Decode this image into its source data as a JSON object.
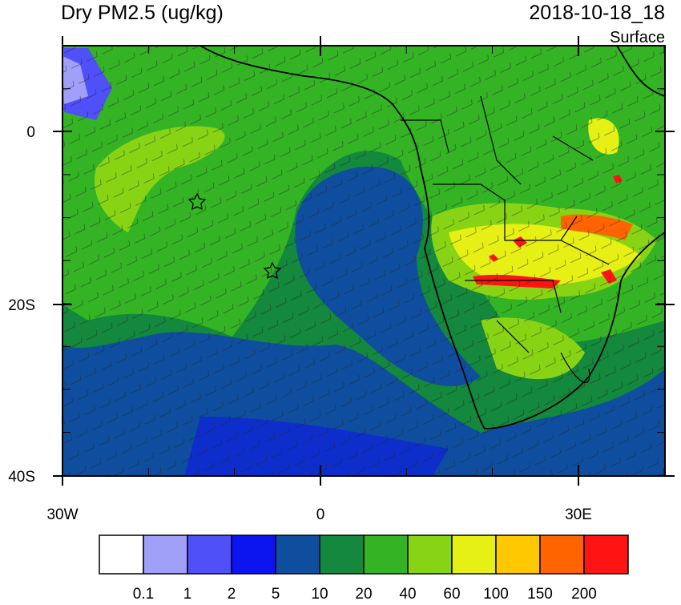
{
  "header": {
    "title": "Dry PM2.5 (ug/kg)",
    "time": "2018-10-18_18",
    "level": "Surface"
  },
  "map": {
    "lat_ticks": [
      "0",
      "20S",
      "40S"
    ],
    "lon_ticks": [
      "30W",
      "0",
      "30E"
    ]
  },
  "colorbar": {
    "colors": [
      "#ffffff",
      "#a0a0f8",
      "#5050f8",
      "#0c14f0",
      "#0f4e9e",
      "#14883c",
      "#34b424",
      "#88d414",
      "#e6f014",
      "#ffc800",
      "#ff6400",
      "#ff1414"
    ],
    "labels": [
      "0.1",
      "1",
      "2",
      "5",
      "10",
      "20",
      "40",
      "60",
      "100",
      "150",
      "200"
    ]
  }
}
